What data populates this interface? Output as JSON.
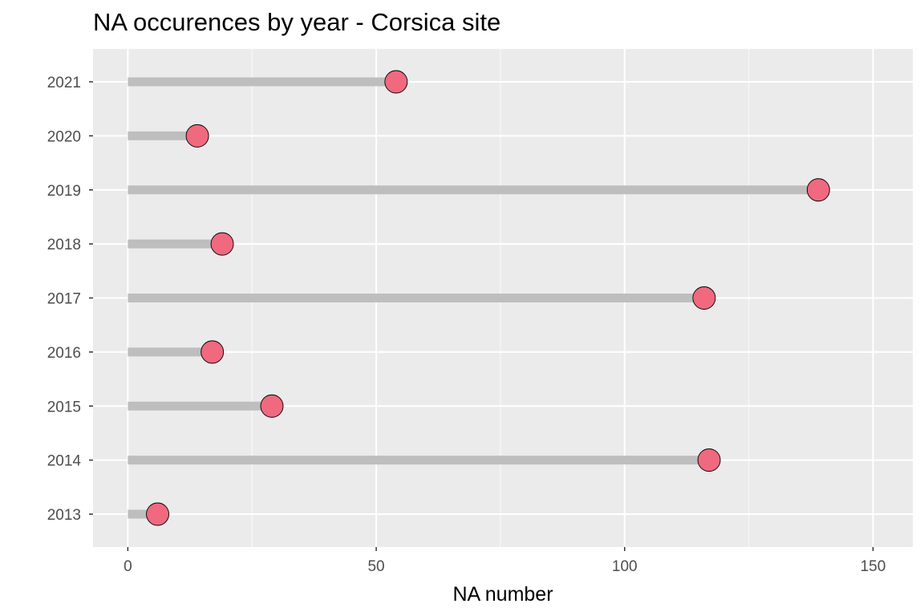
{
  "chart_data": {
    "type": "lollipop",
    "title": "NA occurences by year - Corsica site",
    "xlabel": "NA number",
    "ylabel": "",
    "categories": [
      "2013",
      "2014",
      "2015",
      "2016",
      "2017",
      "2018",
      "2019",
      "2020",
      "2021"
    ],
    "values": [
      6,
      117,
      29,
      17,
      116,
      19,
      139,
      14,
      54
    ],
    "xlim": [
      -7,
      158
    ],
    "x_ticks": [
      0,
      50,
      100,
      150
    ],
    "x_tick_labels": [
      "0",
      "50",
      "100",
      "150"
    ],
    "grid": true,
    "colors": {
      "panel_background": "#ebebeb",
      "grid_major": "#ffffff",
      "stem": "#bebebe",
      "point_fill": "#f0697e",
      "point_stroke": "#000000"
    }
  }
}
